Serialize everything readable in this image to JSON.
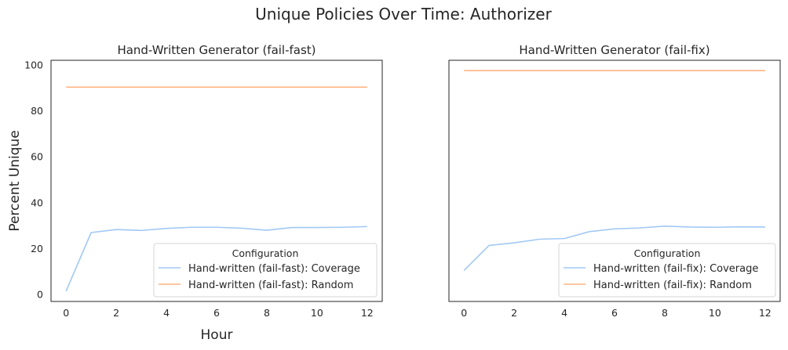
{
  "suptitle": "Unique Policies Over Time: Authorizer",
  "colors": {
    "coverage": "#a1c9f4",
    "random": "#ffb482",
    "axes": "#262626"
  },
  "chart_data": [
    {
      "type": "line",
      "title": "Hand-Written Generator (fail-fast)",
      "xlabel": "Hour",
      "ylabel": "Percent Unique",
      "xlim": [
        -0.6,
        12.6
      ],
      "ylim": [
        -3,
        102
      ],
      "xticks": [
        0,
        2,
        4,
        6,
        8,
        10,
        12
      ],
      "yticks": [
        0,
        20,
        40,
        60,
        80,
        100
      ],
      "grid": false,
      "legend": {
        "title": "Configuration",
        "placement": "lower-right",
        "entries": [
          "Hand-written (fail-fast): Coverage",
          "Hand-written (fail-fast): Random"
        ]
      },
      "x": [
        0,
        1,
        2,
        3,
        4,
        5,
        6,
        7,
        8,
        9,
        10,
        11,
        12
      ],
      "series": [
        {
          "name": "Hand-written (fail-fast): Coverage",
          "color": "#a1c9f4",
          "values": [
            1.5,
            27.0,
            28.3,
            27.9,
            28.8,
            29.3,
            29.3,
            28.9,
            28.0,
            29.2,
            29.2,
            29.3,
            29.6
          ]
        },
        {
          "name": "Hand-written (fail-fast): Random",
          "color": "#ffb482",
          "values": [
            90.3,
            90.3,
            90.3,
            90.3,
            90.3,
            90.3,
            90.3,
            90.3,
            90.3,
            90.3,
            90.3,
            90.3,
            90.3
          ]
        }
      ]
    },
    {
      "type": "line",
      "title": "Hand-Written Generator (fail-fix)",
      "xlabel": "",
      "ylabel": "",
      "xlim": [
        -0.6,
        12.6
      ],
      "ylim": [
        -3,
        102
      ],
      "xticks": [
        0,
        2,
        4,
        6,
        8,
        10,
        12
      ],
      "yticks": [],
      "grid": false,
      "legend": {
        "title": "Configuration",
        "placement": "lower-right",
        "entries": [
          "Hand-written (fail-fix): Coverage",
          "Hand-written (fail-fix): Random"
        ]
      },
      "x": [
        0,
        1,
        2,
        3,
        4,
        5,
        6,
        7,
        8,
        9,
        10,
        11,
        12
      ],
      "series": [
        {
          "name": "Hand-written (fail-fix): Coverage",
          "color": "#a1c9f4",
          "values": [
            10.5,
            21.4,
            22.5,
            24.1,
            24.4,
            27.4,
            28.6,
            29.0,
            29.8,
            29.4,
            29.3,
            29.5,
            29.4
          ]
        },
        {
          "name": "Hand-written (fail-fix): Random",
          "color": "#ffb482",
          "values": [
            97.5,
            97.5,
            97.5,
            97.5,
            97.5,
            97.5,
            97.5,
            97.5,
            97.5,
            97.5,
            97.5,
            97.5,
            97.5
          ]
        }
      ]
    }
  ]
}
